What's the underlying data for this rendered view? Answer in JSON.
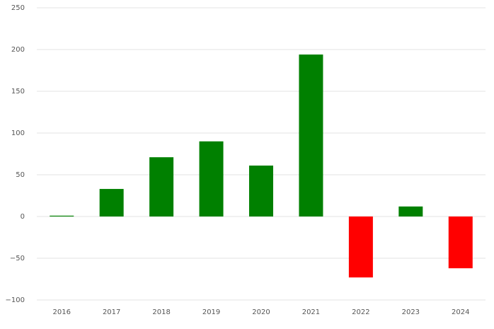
{
  "chart_data": {
    "type": "bar",
    "categories": [
      "2016",
      "2017",
      "2018",
      "2019",
      "2020",
      "2021",
      "2022",
      "2023",
      "2024"
    ],
    "values": [
      1,
      33,
      71,
      90,
      61,
      194,
      -73,
      12,
      -62
    ],
    "positive_color": "#008000",
    "negative_color": "#ff0000",
    "ylim": [
      -100,
      250
    ],
    "yticks": [
      {
        "value": -100,
        "label": "−100"
      },
      {
        "value": -50,
        "label": "−50"
      },
      0,
      50,
      100,
      150,
      200,
      250
    ],
    "grid": true
  }
}
